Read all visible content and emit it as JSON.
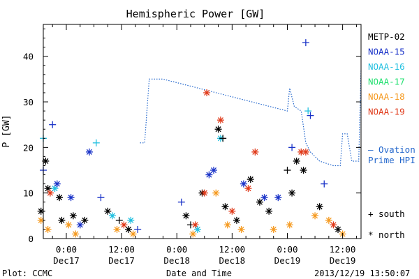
{
  "chart_data": {
    "type": "scatter",
    "title": "Hemispheric Power [GW]",
    "ylabel": "P [GW]",
    "xlabel": "Date and Time",
    "ylim": [
      0,
      47
    ],
    "xlim": [
      "2013-12-16T19:00",
      "2013-12-19T16:00"
    ],
    "yticks": [
      0,
      10,
      20,
      30,
      40
    ],
    "xticks": [
      {
        "t": "2013-12-17T00:00",
        "time": "0:00",
        "date": "Dec17"
      },
      {
        "t": "2013-12-17T12:00",
        "time": "12:00",
        "date": "Dec17"
      },
      {
        "t": "2013-12-18T00:00",
        "time": "0:00",
        "date": "Dec18"
      },
      {
        "t": "2013-12-18T12:00",
        "time": "12:00",
        "date": "Dec18"
      },
      {
        "t": "2013-12-19T00:00",
        "time": "0:00",
        "date": "Dec19"
      },
      {
        "t": "2013-12-19T12:00",
        "time": "12:00",
        "date": "Dec19"
      }
    ],
    "grid": false,
    "legend_position": "right",
    "series": [
      {
        "name": "METP-02",
        "color": "#000000"
      },
      {
        "name": "NOAA-15",
        "color": "#1a33c8"
      },
      {
        "name": "NOAA-16",
        "color": "#22c0e0"
      },
      {
        "name": "NOAA-17",
        "color": "#22e070"
      },
      {
        "name": "NOAA-18",
        "color": "#f59a20"
      },
      {
        "name": "NOAA-19",
        "color": "#e03a1a"
      }
    ],
    "marker_legend": [
      {
        "symbol": "+",
        "label": "south"
      },
      {
        "symbol": "*",
        "label": "north"
      }
    ],
    "ovation": {
      "name": "– Ovation\nPrime HPI",
      "label_lines": [
        "– Ovation",
        "Prime HPI"
      ],
      "color": "#2266cc",
      "points": [
        [
          "2013-12-17T16:00",
          21
        ],
        [
          "2013-12-17T17:00",
          21
        ],
        [
          "2013-12-17T18:00",
          35
        ],
        [
          "2013-12-17T21:00",
          35
        ],
        [
          "2013-12-19T00:00",
          28
        ],
        [
          "2013-12-19T00:30",
          33
        ],
        [
          "2013-12-19T01:30",
          29
        ],
        [
          "2013-12-19T03:00",
          28
        ],
        [
          "2013-12-19T04:00",
          21
        ],
        [
          "2013-12-19T05:00",
          19
        ],
        [
          "2013-12-19T07:00",
          17
        ],
        [
          "2013-12-19T10:00",
          16
        ],
        [
          "2013-12-19T11:30",
          16
        ],
        [
          "2013-12-19T12:00",
          23
        ],
        [
          "2013-12-19T13:00",
          23
        ],
        [
          "2013-12-19T14:00",
          17
        ],
        [
          "2013-12-19T15:30",
          17
        ],
        [
          "2013-12-19T16:00",
          37
        ]
      ]
    },
    "points": [
      {
        "s": 1,
        "m": "+",
        "t": "2013-12-16T19:00",
        "y": 15
      },
      {
        "s": 2,
        "m": "+",
        "t": "2013-12-16T19:00",
        "y": 22
      },
      {
        "s": 0,
        "m": "*",
        "t": "2013-12-16T19:30",
        "y": 17
      },
      {
        "s": 1,
        "m": "+",
        "t": "2013-12-16T21:00",
        "y": 25
      },
      {
        "s": 0,
        "m": "*",
        "t": "2013-12-16T20:00",
        "y": 11
      },
      {
        "s": 5,
        "m": "*",
        "t": "2013-12-16T20:30",
        "y": 10
      },
      {
        "s": 2,
        "m": "*",
        "t": "2013-12-16T21:30",
        "y": 11
      },
      {
        "s": 1,
        "m": "*",
        "t": "2013-12-16T22:00",
        "y": 12
      },
      {
        "s": 0,
        "m": "*",
        "t": "2013-12-16T22:30",
        "y": 9
      },
      {
        "s": 0,
        "m": "*",
        "t": "2013-12-16T18:30",
        "y": 6
      },
      {
        "s": 4,
        "m": "*",
        "t": "2013-12-16T18:30",
        "y": 4
      },
      {
        "s": 4,
        "m": "*",
        "t": "2013-12-16T20:00",
        "y": 2
      },
      {
        "s": 0,
        "m": "*",
        "t": "2013-12-16T23:00",
        "y": 4
      },
      {
        "s": 4,
        "m": "*",
        "t": "2013-12-17T00:30",
        "y": 3
      },
      {
        "s": 1,
        "m": "*",
        "t": "2013-12-17T01:00",
        "y": 9
      },
      {
        "s": 0,
        "m": "*",
        "t": "2013-12-17T01:30",
        "y": 5
      },
      {
        "s": 4,
        "m": "*",
        "t": "2013-12-17T02:00",
        "y": 1
      },
      {
        "s": 1,
        "m": "*",
        "t": "2013-12-17T03:00",
        "y": 3
      },
      {
        "s": 0,
        "m": "*",
        "t": "2013-12-17T04:00",
        "y": 4
      },
      {
        "s": 1,
        "m": "*",
        "t": "2013-12-17T05:00",
        "y": 19
      },
      {
        "s": 2,
        "m": "+",
        "t": "2013-12-17T06:30",
        "y": 21
      },
      {
        "s": 1,
        "m": "+",
        "t": "2013-12-17T07:30",
        "y": 9
      },
      {
        "s": 0,
        "m": "*",
        "t": "2013-12-17T09:00",
        "y": 6
      },
      {
        "s": 2,
        "m": "*",
        "t": "2013-12-17T10:00",
        "y": 5
      },
      {
        "s": 4,
        "m": "*",
        "t": "2013-12-17T11:00",
        "y": 2
      },
      {
        "s": 0,
        "m": "+",
        "t": "2013-12-17T11:30",
        "y": 4
      },
      {
        "s": 5,
        "m": "*",
        "t": "2013-12-17T12:30",
        "y": 3
      },
      {
        "s": 0,
        "m": "*",
        "t": "2013-12-17T13:30",
        "y": 2
      },
      {
        "s": 2,
        "m": "*",
        "t": "2013-12-17T14:00",
        "y": 4
      },
      {
        "s": 4,
        "m": "*",
        "t": "2013-12-17T14:30",
        "y": 1
      },
      {
        "s": 1,
        "m": "+",
        "t": "2013-12-17T15:30",
        "y": 2
      },
      {
        "s": 1,
        "m": "+",
        "t": "2013-12-18T01:00",
        "y": 8
      },
      {
        "s": 0,
        "m": "*",
        "t": "2013-12-18T02:00",
        "y": 5
      },
      {
        "s": 0,
        "m": "+",
        "t": "2013-12-18T03:00",
        "y": 3
      },
      {
        "s": 4,
        "m": "*",
        "t": "2013-12-18T03:30",
        "y": 1
      },
      {
        "s": 5,
        "m": "*",
        "t": "2013-12-18T04:00",
        "y": 3
      },
      {
        "s": 2,
        "m": "*",
        "t": "2013-12-18T04:30",
        "y": 2
      },
      {
        "s": 0,
        "m": "*",
        "t": "2013-12-18T05:30",
        "y": 10
      },
      {
        "s": 5,
        "m": "*",
        "t": "2013-12-18T06:00",
        "y": 10
      },
      {
        "s": 1,
        "m": "*",
        "t": "2013-12-18T07:00",
        "y": 14
      },
      {
        "s": 1,
        "m": "*",
        "t": "2013-12-18T08:00",
        "y": 15
      },
      {
        "s": 5,
        "m": "*",
        "t": "2013-12-18T06:30",
        "y": 32
      },
      {
        "s": 5,
        "m": "*",
        "t": "2013-12-18T09:30",
        "y": 26
      },
      {
        "s": 0,
        "m": "*",
        "t": "2013-12-18T09:00",
        "y": 24
      },
      {
        "s": 2,
        "m": "*",
        "t": "2013-12-18T09:30",
        "y": 22
      },
      {
        "s": 0,
        "m": "+",
        "t": "2013-12-18T10:00",
        "y": 22
      },
      {
        "s": 4,
        "m": "*",
        "t": "2013-12-18T08:30",
        "y": 10
      },
      {
        "s": 0,
        "m": "*",
        "t": "2013-12-18T10:30",
        "y": 7
      },
      {
        "s": 4,
        "m": "*",
        "t": "2013-12-18T11:00",
        "y": 3
      },
      {
        "s": 5,
        "m": "*",
        "t": "2013-12-18T12:00",
        "y": 6
      },
      {
        "s": 0,
        "m": "*",
        "t": "2013-12-18T13:00",
        "y": 4
      },
      {
        "s": 4,
        "m": "*",
        "t": "2013-12-18T14:00",
        "y": 2
      },
      {
        "s": 1,
        "m": "*",
        "t": "2013-12-18T14:30",
        "y": 12
      },
      {
        "s": 5,
        "m": "*",
        "t": "2013-12-18T15:30",
        "y": 11
      },
      {
        "s": 0,
        "m": "*",
        "t": "2013-12-18T16:00",
        "y": 13
      },
      {
        "s": 5,
        "m": "*",
        "t": "2013-12-18T17:00",
        "y": 19
      },
      {
        "s": 0,
        "m": "*",
        "t": "2013-12-18T18:00",
        "y": 8
      },
      {
        "s": 1,
        "m": "*",
        "t": "2013-12-18T19:00",
        "y": 9
      },
      {
        "s": 0,
        "m": "*",
        "t": "2013-12-18T20:00",
        "y": 6
      },
      {
        "s": 4,
        "m": "*",
        "t": "2013-12-18T21:00",
        "y": 2
      },
      {
        "s": 1,
        "m": "*",
        "t": "2013-12-18T22:00",
        "y": 9
      },
      {
        "s": 0,
        "m": "+",
        "t": "2013-12-19T00:00",
        "y": 15
      },
      {
        "s": 1,
        "m": "+",
        "t": "2013-12-19T01:00",
        "y": 20
      },
      {
        "s": 0,
        "m": "*",
        "t": "2013-12-19T02:00",
        "y": 17
      },
      {
        "s": 5,
        "m": "*",
        "t": "2013-12-19T03:00",
        "y": 19
      },
      {
        "s": 0,
        "m": "*",
        "t": "2013-12-19T03:30",
        "y": 15
      },
      {
        "s": 5,
        "m": "*",
        "t": "2013-12-19T04:00",
        "y": 19
      },
      {
        "s": 1,
        "m": "+",
        "t": "2013-12-19T04:00",
        "y": 43
      },
      {
        "s": 2,
        "m": "+",
        "t": "2013-12-19T04:30",
        "y": 28
      },
      {
        "s": 1,
        "m": "+",
        "t": "2013-12-19T05:00",
        "y": 27
      },
      {
        "s": 0,
        "m": "*",
        "t": "2013-12-19T01:00",
        "y": 10
      },
      {
        "s": 4,
        "m": "*",
        "t": "2013-12-19T00:30",
        "y": 3
      },
      {
        "s": 4,
        "m": "*",
        "t": "2013-12-19T06:00",
        "y": 5
      },
      {
        "s": 0,
        "m": "*",
        "t": "2013-12-19T07:00",
        "y": 7
      },
      {
        "s": 1,
        "m": "+",
        "t": "2013-12-19T08:00",
        "y": 12
      },
      {
        "s": 4,
        "m": "*",
        "t": "2013-12-19T09:00",
        "y": 4
      },
      {
        "s": 5,
        "m": "*",
        "t": "2013-12-19T10:00",
        "y": 3
      },
      {
        "s": 0,
        "m": "*",
        "t": "2013-12-19T11:00",
        "y": 2
      },
      {
        "s": 4,
        "m": "*",
        "t": "2013-12-19T12:00",
        "y": 1
      }
    ]
  },
  "footer": {
    "plot_credit": "Plot: CCMC",
    "timestamp": "2013/12/19 13:50:07"
  }
}
